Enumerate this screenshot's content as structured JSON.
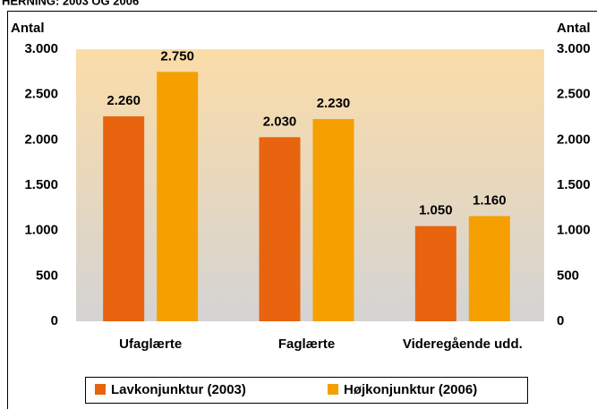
{
  "chart_data": {
    "type": "bar",
    "title": "HERNING: 2003 OG 2006",
    "ylabel": "Antal",
    "y2label": "Antal",
    "categories": [
      "Ufaglærte",
      "Faglærte",
      "Videregående udd."
    ],
    "series": [
      {
        "name": "Lavkonjunktur (2003)",
        "color": "#e8640f",
        "values": [
          2260,
          2030,
          1050
        ],
        "value_labels": [
          "2.260",
          "2.030",
          "1.050"
        ]
      },
      {
        "name": "Højkonjunktur (2006)",
        "color": "#f5a000",
        "values": [
          2750,
          2230,
          1160
        ],
        "value_labels": [
          "2.750",
          "2.230",
          "1.160"
        ]
      }
    ],
    "ylim": [
      0,
      3000
    ],
    "yticks": [
      0,
      {
        "value": 500,
        "label": "500"
      },
      {
        "value": 1000,
        "label": "1.000"
      },
      {
        "value": 1500,
        "label": "1.500"
      },
      {
        "value": 2000,
        "label": "2.000"
      },
      {
        "value": 2500,
        "label": "2.500"
      },
      {
        "value": 3000,
        "label": "3.000"
      }
    ],
    "y2lim": [
      0,
      3000
    ],
    "y2ticks": [
      0,
      {
        "value": 500,
        "label": "500"
      },
      {
        "value": 1000,
        "label": "1.000"
      },
      {
        "value": 1500,
        "label": "1.500"
      },
      {
        "value": 2000,
        "label": "2.000"
      },
      {
        "value": 2500,
        "label": "2.500"
      },
      {
        "value": 3000,
        "label": "3.000"
      }
    ],
    "legend": "bottom"
  }
}
